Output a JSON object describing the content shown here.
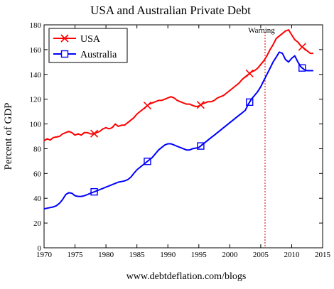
{
  "chart_data": {
    "type": "line",
    "title": "USA and Australian Private Debt",
    "xlabel": "",
    "ylabel": "Percent of GDP",
    "xlim": [
      1970,
      2015
    ],
    "ylim": [
      0,
      180
    ],
    "xticks": [
      1970,
      1975,
      1980,
      1985,
      1990,
      1995,
      2000,
      2005,
      2010,
      2015
    ],
    "yticks": [
      0,
      20,
      40,
      60,
      80,
      100,
      120,
      140,
      160,
      180
    ],
    "grid": false,
    "legend_position": "top-left",
    "annotation": {
      "text": "Warning",
      "x": 2005.7
    },
    "footer": "www.debtdeflation.com/blogs",
    "series": [
      {
        "name": "USA",
        "color": "#ff0000",
        "marker": "x",
        "marker_x": [
          1978.1,
          1986.7,
          1995.3,
          2003.2,
          2011.7
        ],
        "x": [
          1970,
          1970.5,
          1971,
          1971.5,
          1972,
          1972.5,
          1973,
          1973.5,
          1974,
          1974.5,
          1975,
          1975.5,
          1976,
          1976.5,
          1977,
          1977.5,
          1978,
          1978.5,
          1979,
          1979.5,
          1980,
          1980.5,
          1981,
          1981.5,
          1982,
          1982.5,
          1983,
          1983.5,
          1984,
          1984.5,
          1985,
          1985.5,
          1986,
          1986.5,
          1987,
          1987.5,
          1988,
          1988.5,
          1989,
          1989.5,
          1990,
          1990.5,
          1991,
          1991.5,
          1992,
          1992.5,
          1993,
          1993.5,
          1994,
          1994.5,
          1995,
          1995.5,
          1996,
          1996.5,
          1997,
          1997.5,
          1998,
          1998.5,
          1999,
          1999.5,
          2000,
          2000.5,
          2001,
          2001.5,
          2002,
          2002.5,
          2003,
          2003.5,
          2004,
          2004.5,
          2005,
          2005.5,
          2006,
          2006.5,
          2007,
          2007.5,
          2008,
          2008.5,
          2009,
          2009.5,
          2010,
          2010.5,
          2011,
          2011.5,
          2012,
          2012.5,
          2013,
          2013.5
        ],
        "y": [
          86.5,
          88,
          87,
          89,
          89.5,
          90,
          92,
          93,
          94,
          93,
          91,
          92,
          91,
          93,
          93,
          92,
          92,
          93,
          94,
          96,
          97,
          96,
          97,
          100,
          98,
          99,
          99,
          101,
          103,
          105,
          108,
          110,
          112,
          114,
          116,
          117,
          118,
          119,
          119,
          120,
          121,
          122,
          121,
          119,
          118,
          117,
          116,
          116,
          115,
          114,
          114.5,
          116,
          117,
          118,
          118,
          119,
          121,
          122,
          123,
          125,
          127,
          129,
          131,
          133,
          136,
          138,
          140,
          142,
          143,
          145,
          148,
          151,
          155,
          160,
          164,
          169,
          171,
          173,
          175,
          176,
          172,
          168,
          166,
          163,
          161,
          159,
          157,
          157
        ]
      },
      {
        "name": "Australia",
        "color": "#0000ff",
        "marker": "square",
        "marker_x": [
          1978.1,
          1986.7,
          1995.3,
          2003.2,
          2011.7
        ],
        "x": [
          1970,
          1970.5,
          1971,
          1971.5,
          1972,
          1972.5,
          1973,
          1973.5,
          1974,
          1974.5,
          1975,
          1975.5,
          1976,
          1976.5,
          1977,
          1977.5,
          1978,
          1978.5,
          1979,
          1979.5,
          1980,
          1980.5,
          1981,
          1981.5,
          1982,
          1982.5,
          1983,
          1983.5,
          1984,
          1984.5,
          1985,
          1985.5,
          1986,
          1986.5,
          1987,
          1987.5,
          1988,
          1988.5,
          1989,
          1989.5,
          1990,
          1990.5,
          1991,
          1991.5,
          1992,
          1992.5,
          1993,
          1993.5,
          1994,
          1994.5,
          1995,
          1995.5,
          1996,
          1996.5,
          1997,
          1997.5,
          1998,
          1998.5,
          1999,
          1999.5,
          2000,
          2000.5,
          2001,
          2001.5,
          2002,
          2002.5,
          2003,
          2003.5,
          2004,
          2004.5,
          2005,
          2005.5,
          2006,
          2006.5,
          2007,
          2007.5,
          2008,
          2008.5,
          2009,
          2009.5,
          2010,
          2010.5,
          2011,
          2011.5,
          2012,
          2012.5,
          2013,
          2013.5
        ],
        "y": [
          31.5,
          32,
          32.5,
          33,
          34,
          36,
          39,
          43,
          44.5,
          44,
          42,
          41.5,
          41.5,
          42,
          43,
          44,
          45,
          46,
          47,
          48,
          49,
          50,
          51,
          52,
          53,
          53.5,
          54,
          55,
          57,
          60,
          63,
          65,
          67,
          69,
          71,
          73,
          76,
          79,
          81,
          83,
          84,
          84,
          83,
          82,
          81,
          80,
          79,
          79,
          80,
          80.5,
          81,
          83,
          85,
          87,
          89,
          91,
          93,
          95,
          97,
          99,
          101,
          103,
          105,
          107,
          109,
          111,
          116,
          120,
          123,
          126,
          130,
          135,
          140,
          145,
          150,
          154,
          158,
          157,
          152,
          150,
          153,
          155,
          150,
          146,
          144,
          143,
          143,
          143
        ]
      }
    ]
  }
}
